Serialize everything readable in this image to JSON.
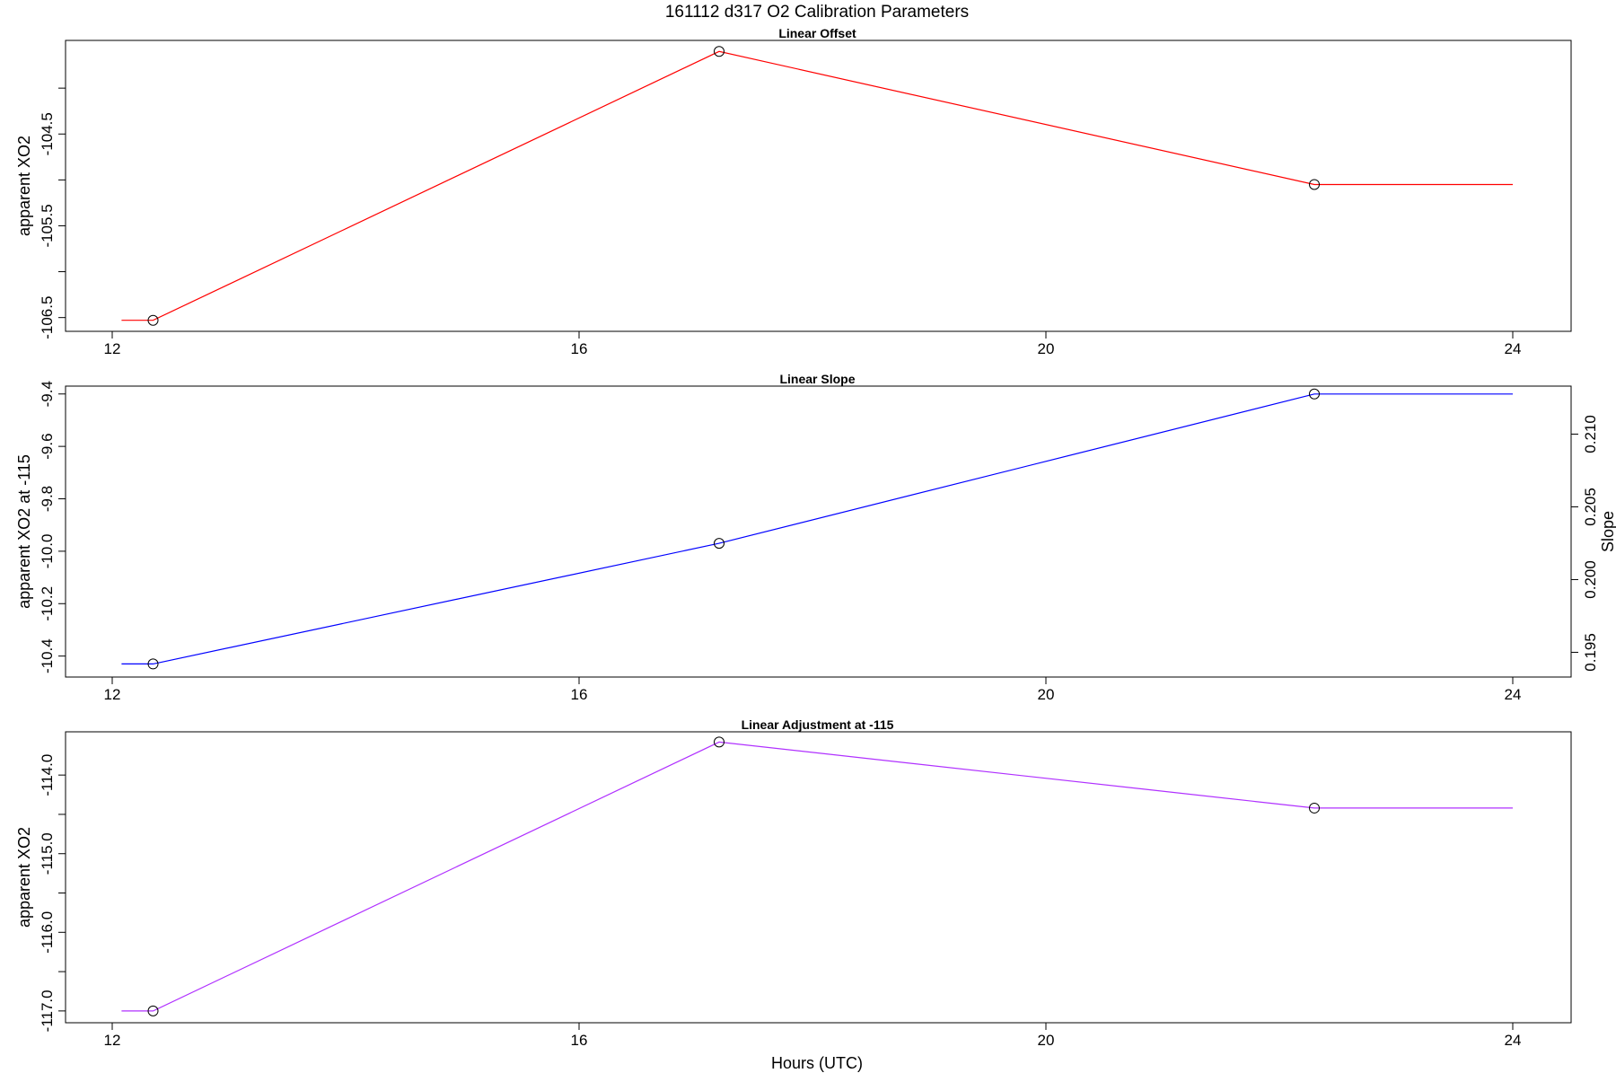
{
  "main_title": "161112   d317   O2 Calibration Parameters",
  "x_axis_label": "Hours (UTC)",
  "chart_data": [
    {
      "type": "line",
      "title": "Linear Offset",
      "xlabel": "",
      "ylabel": "apparent XO2",
      "xlim": [
        11.6,
        24.5
      ],
      "ylim": [
        -106.65,
        -103.48
      ],
      "x_ticks": [
        "12",
        "16",
        "20",
        "24"
      ],
      "x_tick_values": [
        12,
        16,
        20,
        24
      ],
      "y_ticks": [
        "-106.5",
        "-105.5",
        "-104.5"
      ],
      "y_tick_values": [
        -106.5,
        -105.5,
        -104.5
      ],
      "y_minor_ticks": [
        -106.0,
        -105.0,
        -104.0
      ],
      "color": "#ff0000",
      "line_x": [
        12.08,
        12.35,
        17.2,
        22.3,
        24.0
      ],
      "line_y": [
        -106.53,
        -106.53,
        -103.6,
        -105.05,
        -105.05
      ],
      "points_x": [
        12.35,
        17.2,
        22.3
      ],
      "points_y": [
        -106.53,
        -103.6,
        -105.05
      ],
      "grid": false,
      "legend": "none"
    },
    {
      "type": "line",
      "title": "Linear Slope",
      "xlabel": "",
      "ylabel": "apparent XO2 at -115",
      "y2label": "Slope",
      "xlim": [
        11.6,
        24.5
      ],
      "ylim": [
        -10.48,
        -9.37
      ],
      "x_ticks": [
        "12",
        "16",
        "20",
        "24"
      ],
      "x_tick_values": [
        12,
        16,
        20,
        24
      ],
      "y_ticks": [
        "-10.4",
        "-10.2",
        "-10.0",
        "-9.8",
        "-9.6",
        "-9.4"
      ],
      "y_tick_values": [
        -10.4,
        -10.2,
        -10.0,
        -9.8,
        -9.6,
        -9.4
      ],
      "y2_ticks": [
        "0.195",
        "0.200",
        "0.205",
        "0.210"
      ],
      "y2_tick_values": [
        0.195,
        0.2,
        0.205,
        0.21
      ],
      "y2_lim": [
        0.1933,
        0.2133
      ],
      "color": "#0000ff",
      "line_x": [
        12.08,
        12.35,
        17.2,
        22.3,
        24.0
      ],
      "line_y": [
        -10.43,
        -10.43,
        -9.97,
        -9.4,
        -9.4
      ],
      "points_x": [
        12.35,
        17.2,
        22.3
      ],
      "points_y": [
        -10.43,
        -9.97,
        -9.4
      ],
      "grid": false,
      "legend": "none"
    },
    {
      "type": "line",
      "title": "Linear Adjustment at -115",
      "xlabel": "Hours (UTC)",
      "ylabel": "apparent XO2",
      "xlim": [
        11.6,
        24.5
      ],
      "ylim": [
        -117.15,
        -113.45
      ],
      "x_ticks": [
        "12",
        "16",
        "20",
        "24"
      ],
      "x_tick_values": [
        12,
        16,
        20,
        24
      ],
      "y_ticks": [
        "-117.0",
        "-116.0",
        "-115.0",
        "-114.0"
      ],
      "y_tick_values": [
        -117.0,
        -116.0,
        -115.0,
        -114.0
      ],
      "y_minor_ticks": [
        -116.5,
        -115.5,
        -114.5
      ],
      "color": "#b030ff",
      "line_x": [
        12.08,
        12.35,
        17.2,
        22.3,
        24.0
      ],
      "line_y": [
        -117.0,
        -117.0,
        -113.58,
        -114.42,
        -114.42
      ],
      "points_x": [
        12.35,
        17.2,
        22.3
      ],
      "points_y": [
        -117.0,
        -113.58,
        -114.42
      ],
      "grid": false,
      "legend": "none"
    }
  ]
}
